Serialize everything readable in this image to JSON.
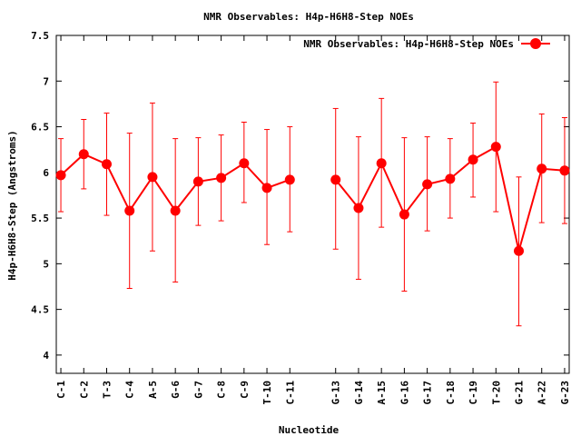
{
  "chart_data": {
    "type": "line",
    "title": "NMR Observables: H4p-H6H8-Step NOEs",
    "xlabel": "Nucleotide",
    "ylabel": "H4p-H6H8-Step (Angstroms)",
    "ylim": [
      3.8,
      7.5
    ],
    "yticks": [
      "4",
      "4.5",
      "5",
      "5.5",
      "6",
      "6.5",
      "7",
      "7.5"
    ],
    "legend_position": "top-right",
    "grid": false,
    "categories": [
      "C-1",
      "C-2",
      "T-3",
      "C-4",
      "A-5",
      "G-6",
      "G-7",
      "C-8",
      "C-9",
      "T-10",
      "C-11",
      "G-13",
      "G-14",
      "A-15",
      "G-16",
      "G-17",
      "C-18",
      "C-19",
      "T-20",
      "G-21",
      "A-22",
      "G-23"
    ],
    "x": [
      1,
      2,
      3,
      4,
      5,
      6,
      7,
      8,
      9,
      10,
      11,
      13,
      14,
      15,
      16,
      17,
      18,
      19,
      20,
      21,
      22,
      23
    ],
    "series": [
      {
        "name": "NMR Observables: H4p-H6H8-Step NOEs",
        "color": "#ff0000",
        "segments": [
          [
            0,
            10
          ],
          [
            11,
            21
          ]
        ],
        "values": [
          5.97,
          6.2,
          6.09,
          5.58,
          5.95,
          5.58,
          5.9,
          5.94,
          6.1,
          5.83,
          5.92,
          5.92,
          5.61,
          6.1,
          5.54,
          5.87,
          5.93,
          6.14,
          6.28,
          5.14,
          6.04,
          6.02
        ],
        "err_low": [
          5.57,
          5.82,
          5.53,
          4.73,
          5.14,
          4.8,
          5.42,
          5.47,
          5.67,
          5.21,
          5.35,
          5.16,
          4.83,
          5.4,
          4.7,
          5.36,
          5.5,
          5.73,
          5.57,
          4.32,
          5.45,
          5.44
        ],
        "err_high": [
          6.37,
          6.58,
          6.65,
          6.43,
          6.76,
          6.37,
          6.38,
          6.41,
          6.55,
          6.47,
          6.5,
          6.7,
          6.39,
          6.81,
          6.38,
          6.39,
          6.37,
          6.54,
          6.99,
          5.95,
          6.64,
          6.6
        ]
      }
    ]
  }
}
